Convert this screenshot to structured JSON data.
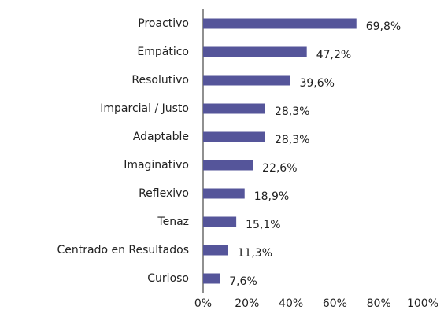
{
  "chart_data": {
    "type": "bar",
    "orientation": "horizontal",
    "categories": [
      "Proactivo",
      "Empático",
      "Resolutivo",
      "Imparcial / Justo",
      "Adaptable",
      "Imaginativo",
      "Reflexivo",
      "Tenaz",
      "Centrado en Resultados",
      "Curioso"
    ],
    "values": [
      69.8,
      47.2,
      39.6,
      28.3,
      28.3,
      22.6,
      18.9,
      15.1,
      11.3,
      7.6
    ],
    "value_labels": [
      "69,8%",
      "47,2%",
      "39,6%",
      "28,3%",
      "28,3%",
      "22,6%",
      "18,9%",
      "15,1%",
      "11,3%",
      "7,6%"
    ],
    "color": "#55559a",
    "xlim": [
      0,
      100
    ],
    "xticks": [
      {
        "value": 0,
        "label": "0%"
      },
      {
        "value": 20,
        "label": "20%"
      },
      {
        "value": 40,
        "label": "40%"
      },
      {
        "value": 60,
        "label": "60%"
      },
      {
        "value": 80,
        "label": "80%"
      },
      {
        "value": 100,
        "label": "100%"
      }
    ],
    "grid": false
  }
}
